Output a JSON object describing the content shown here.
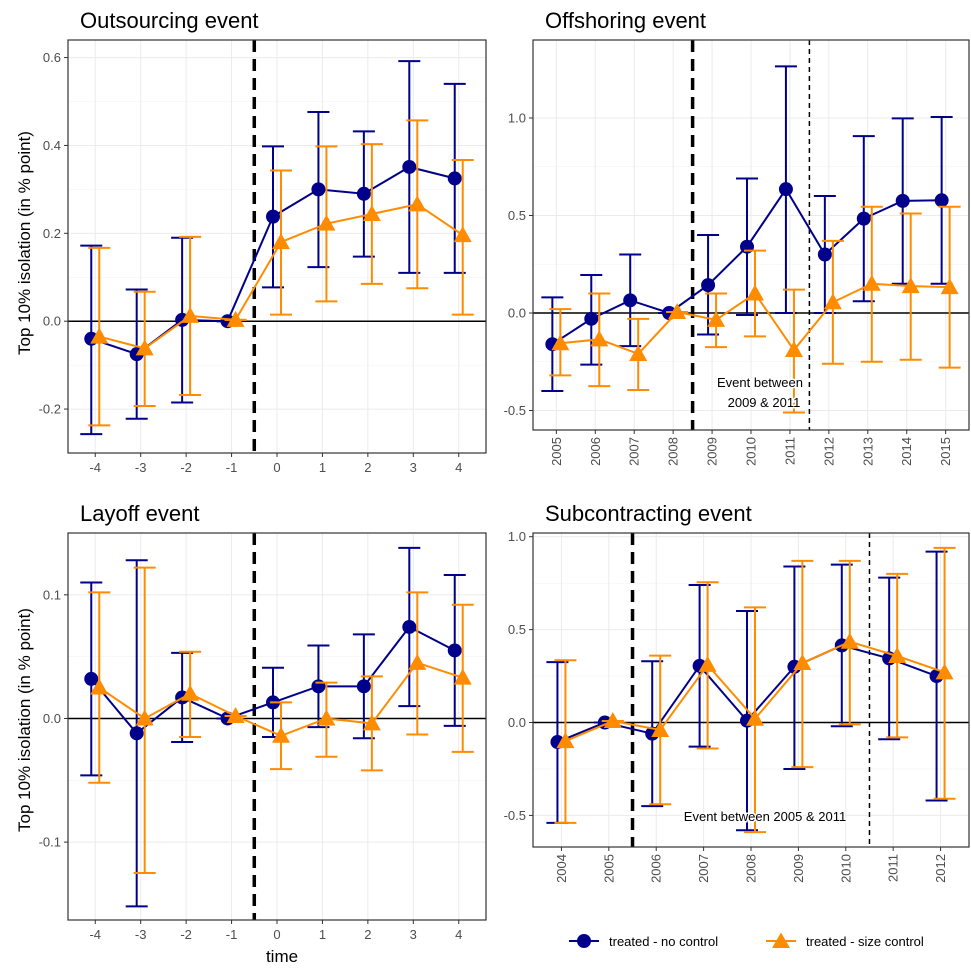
{
  "ylabel": "Top 10% isolation (in % point)",
  "xlabel": "time",
  "colors": {
    "no_control": "#00008B",
    "size_control": "#FF8C00"
  },
  "legend": {
    "no_control": "treated - no control",
    "size_control": "treated - size control"
  },
  "chart_data": [
    {
      "type": "line",
      "title": "Outsourcing event",
      "x": [
        "-4",
        "-3",
        "-2",
        "-1",
        "0",
        "1",
        "2",
        "3",
        "4"
      ],
      "ylim": [
        -0.3,
        0.64
      ],
      "yticks": [
        -0.2,
        0.0,
        0.2,
        0.4,
        0.6
      ],
      "ytick_labels": [
        "-0.2",
        "0.0",
        "0.2",
        "0.4",
        "0.6"
      ],
      "event_line_after": "-1",
      "note": "",
      "series": [
        {
          "name": "treated - no control",
          "key": "no_control",
          "values": [
            -0.04,
            -0.075,
            0.003,
            0.0,
            0.238,
            0.3,
            0.29,
            0.351,
            0.325
          ],
          "lower": [
            -0.257,
            -0.222,
            -0.185,
            0.0,
            0.077,
            0.123,
            0.147,
            0.11,
            0.11
          ],
          "upper": [
            0.172,
            0.072,
            0.19,
            0.0,
            0.398,
            0.476,
            0.432,
            0.592,
            0.54
          ]
        },
        {
          "name": "treated - size control",
          "key": "size_control",
          "values": [
            -0.035,
            -0.062,
            0.012,
            0.003,
            0.18,
            0.222,
            0.244,
            0.266,
            0.196
          ],
          "lower": [
            -0.237,
            -0.193,
            -0.168,
            0.003,
            0.015,
            0.045,
            0.085,
            0.075,
            0.015
          ],
          "upper": [
            0.167,
            0.067,
            0.192,
            0.003,
            0.343,
            0.398,
            0.403,
            0.457,
            0.367
          ]
        }
      ]
    },
    {
      "type": "line",
      "title": "Offshoring event",
      "x": [
        "2005",
        "2006",
        "2007",
        "2008",
        "2009",
        "2010",
        "2011",
        "2012",
        "2013",
        "2014",
        "2015"
      ],
      "ylim": [
        -0.6,
        1.4
      ],
      "yticks": [
        -0.5,
        0.0,
        0.5,
        1.0
      ],
      "ytick_labels": [
        "-0.5",
        "0.0",
        "0.5",
        "1.0"
      ],
      "event_line_after": "2008",
      "event_line_end_after": "2011",
      "note": "Event between\n2009 & 2011",
      "series": [
        {
          "name": "treated - no control",
          "key": "no_control",
          "values": [
            -0.16,
            -0.03,
            0.065,
            0.0,
            0.143,
            0.34,
            0.635,
            0.3,
            0.484,
            0.575,
            0.578
          ],
          "lower": [
            -0.4,
            -0.265,
            -0.17,
            0.0,
            -0.11,
            -0.01,
            0.0,
            0.0,
            0.06,
            0.15,
            0.15
          ],
          "upper": [
            0.08,
            0.195,
            0.3,
            0.0,
            0.4,
            0.69,
            1.265,
            0.6,
            0.907,
            0.998,
            1.005
          ]
        },
        {
          "name": "treated - size control",
          "key": "size_control",
          "values": [
            -0.155,
            -0.135,
            -0.21,
            0.005,
            -0.035,
            0.1,
            -0.19,
            0.055,
            0.15,
            0.138,
            0.133
          ],
          "lower": [
            -0.32,
            -0.375,
            -0.395,
            0.005,
            -0.175,
            -0.12,
            -0.51,
            -0.26,
            -0.25,
            -0.24,
            -0.28
          ],
          "upper": [
            0.02,
            0.1,
            -0.03,
            0.005,
            0.1,
            0.32,
            0.12,
            0.37,
            0.545,
            0.51,
            0.545
          ]
        }
      ]
    },
    {
      "type": "line",
      "title": "Layoff event",
      "x": [
        "-4",
        "-3",
        "-2",
        "-1",
        "0",
        "1",
        "2",
        "3",
        "4"
      ],
      "ylim": [
        -0.163,
        0.15
      ],
      "yticks": [
        -0.1,
        0.0,
        0.1
      ],
      "ytick_labels": [
        "-0.1",
        "0.0",
        "0.1"
      ],
      "event_line_after": "-1",
      "note": "",
      "series": [
        {
          "name": "treated - no control",
          "key": "no_control",
          "values": [
            0.032,
            -0.012,
            0.017,
            0.0,
            0.013,
            0.026,
            0.026,
            0.074,
            0.055
          ],
          "lower": [
            -0.046,
            -0.152,
            -0.019,
            0.0,
            -0.015,
            -0.007,
            -0.016,
            0.01,
            -0.006
          ],
          "upper": [
            0.11,
            0.128,
            0.053,
            0.0,
            0.041,
            0.059,
            0.068,
            0.138,
            0.116
          ]
        },
        {
          "name": "treated - size control",
          "key": "size_control",
          "values": [
            0.025,
            0.0,
            0.02,
            0.002,
            -0.014,
            0.0,
            -0.004,
            0.045,
            0.033
          ],
          "lower": [
            -0.052,
            -0.125,
            -0.015,
            0.002,
            -0.041,
            -0.031,
            -0.042,
            -0.013,
            -0.027
          ],
          "upper": [
            0.102,
            0.122,
            0.054,
            0.002,
            0.013,
            0.029,
            0.034,
            0.102,
            0.092
          ]
        }
      ]
    },
    {
      "type": "line",
      "title": "Subcontracting event",
      "x": [
        "2004",
        "2005",
        "2006",
        "2007",
        "2008",
        "2009",
        "2010",
        "2011",
        "2012"
      ],
      "ylim": [
        -0.67,
        1.02
      ],
      "yticks": [
        -0.5,
        0.0,
        0.5,
        1.0
      ],
      "ytick_labels": [
        "-0.5",
        "0.0",
        "0.5",
        "1.0"
      ],
      "event_line_after": "2005",
      "event_line_end_after": "2010",
      "note": "Event between 2005 & 2011",
      "series": [
        {
          "name": "treated - no control",
          "key": "no_control",
          "values": [
            -0.105,
            0.0,
            -0.06,
            0.305,
            0.01,
            0.3,
            0.415,
            0.345,
            0.25
          ],
          "lower": [
            -0.54,
            0.0,
            -0.45,
            -0.13,
            -0.58,
            -0.25,
            -0.02,
            -0.09,
            -0.42
          ],
          "upper": [
            0.325,
            0.0,
            0.33,
            0.74,
            0.6,
            0.84,
            0.85,
            0.78,
            0.92
          ]
        },
        {
          "name": "treated - size control",
          "key": "size_control",
          "values": [
            -0.1,
            0.008,
            -0.04,
            0.31,
            0.02,
            0.32,
            0.435,
            0.358,
            0.27
          ],
          "lower": [
            -0.54,
            0.008,
            -0.44,
            -0.14,
            -0.59,
            -0.24,
            -0.01,
            -0.08,
            -0.41
          ],
          "upper": [
            0.335,
            0.008,
            0.36,
            0.755,
            0.62,
            0.87,
            0.87,
            0.8,
            0.94
          ]
        }
      ]
    }
  ]
}
